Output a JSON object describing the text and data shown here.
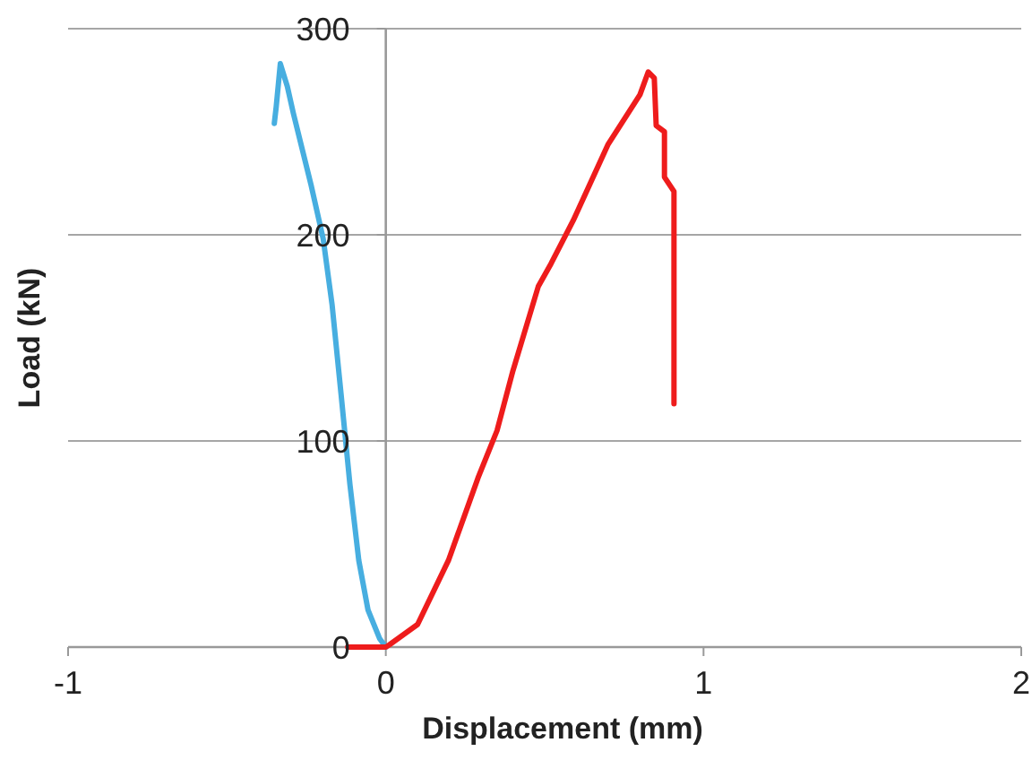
{
  "chart_data": {
    "type": "line",
    "xlabel": "Displacement (mm)",
    "ylabel": "Load (kN)",
    "xlim": [
      -1,
      2
    ],
    "xticks": [
      -1,
      0,
      1,
      2
    ],
    "ylim": [
      0,
      300
    ],
    "yticks": [
      0,
      100,
      200,
      300
    ],
    "grid": "y",
    "marker": "none",
    "line_style": "solid",
    "series": [
      {
        "color": "#47aee0",
        "x": [
          -0.351,
          -0.345,
          -0.332,
          -0.31,
          -0.291,
          -0.235,
          -0.197,
          -0.169,
          -0.141,
          -0.113,
          -0.085,
          -0.056,
          -0.019,
          0
        ],
        "values": [
          254,
          262,
          283,
          272,
          259,
          224,
          198,
          166,
          123,
          79,
          42,
          18,
          4,
          0
        ]
      },
      {
        "color": "#ee1c1c",
        "x": [
          -0.12,
          0,
          0.01,
          0.1,
          0.197,
          0.29,
          0.35,
          0.4,
          0.48,
          0.52,
          0.59,
          0.7,
          0.8,
          0.826,
          0.845,
          0.851,
          0.877,
          0.877,
          0.907,
          0.907
        ],
        "values": [
          0,
          0,
          1,
          11,
          42,
          82,
          105,
          134,
          175,
          186,
          207,
          244,
          268,
          279,
          276,
          253,
          250,
          228,
          221,
          118
        ]
      }
    ]
  }
}
